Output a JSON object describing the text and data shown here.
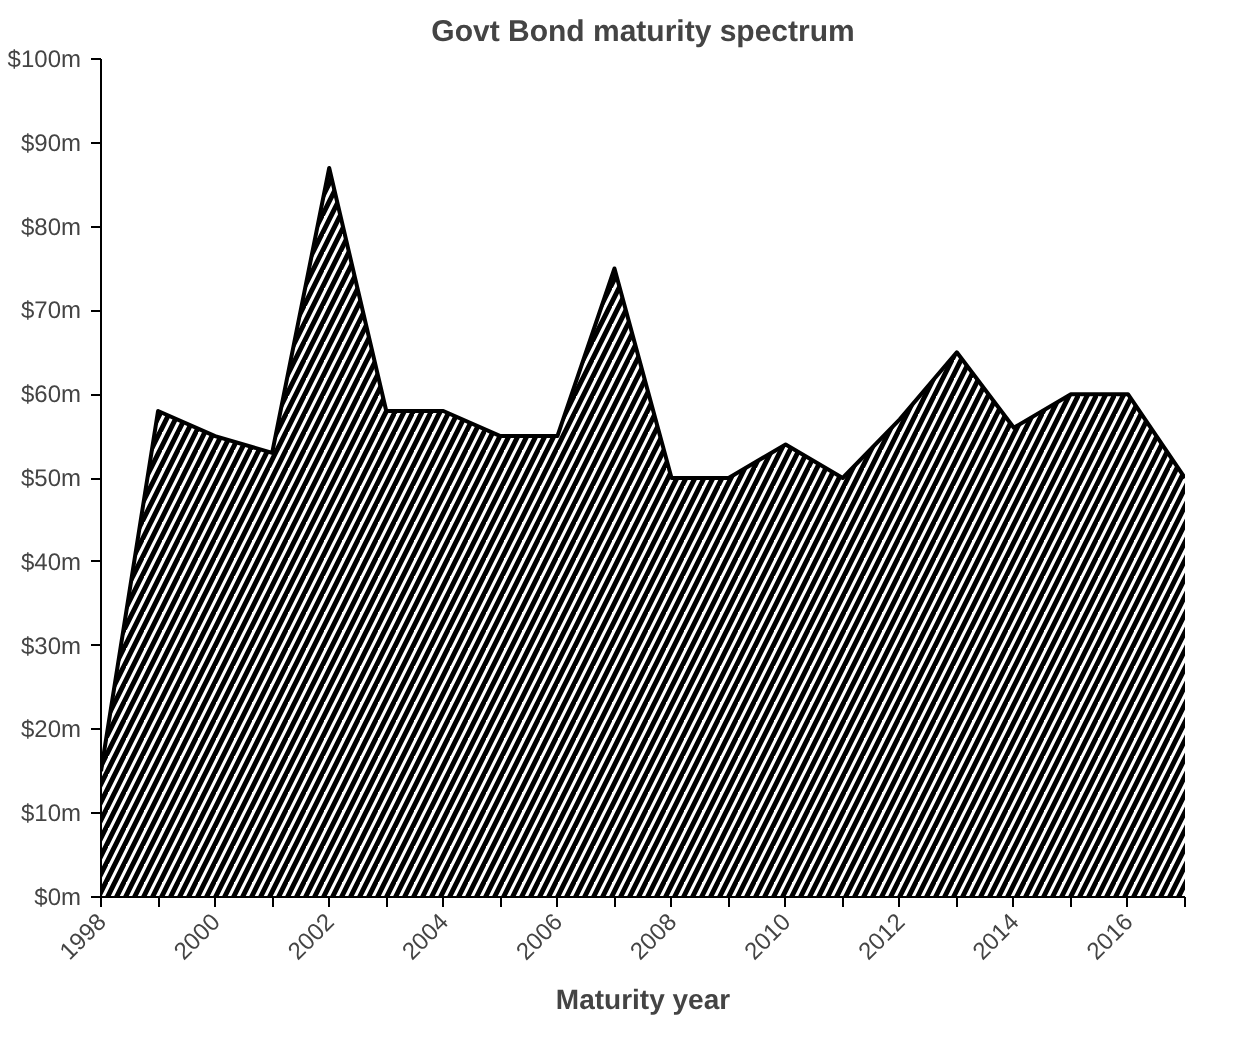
{
  "chart_data": {
    "type": "area",
    "title": "Govt Bond maturity spectrum",
    "xlabel": "Maturity year",
    "categories": [
      "1998",
      null,
      "2000",
      null,
      "2002",
      null,
      "2004",
      null,
      "2006",
      null,
      "2008",
      null,
      "2010",
      null,
      "2012",
      null,
      "2014",
      null,
      "2016",
      null
    ],
    "series": [
      {
        "color": "#000000",
        "values": [
          15,
          58,
          55,
          53,
          87,
          58,
          58,
          55,
          55,
          75,
          50,
          50,
          54,
          50,
          57,
          65,
          56,
          60,
          60,
          50
        ]
      }
    ],
    "ylim": [
      0,
      100
    ],
    "yticks": [
      {
        "value": 0,
        "label": "$0m"
      },
      {
        "value": 10,
        "label": "$10m"
      },
      {
        "value": 20,
        "label": "$20m"
      },
      {
        "value": 30,
        "label": "$30m"
      },
      {
        "value": 40,
        "label": "$40m"
      },
      {
        "value": 50,
        "label": "$50m"
      },
      {
        "value": 60,
        "label": "$60m"
      },
      {
        "value": 70,
        "label": "$70m"
      },
      {
        "value": 80,
        "label": "$80m"
      },
      {
        "value": 90,
        "label": "$90m"
      },
      {
        "value": 100,
        "label": "$100m"
      }
    ],
    "grid": false
  }
}
